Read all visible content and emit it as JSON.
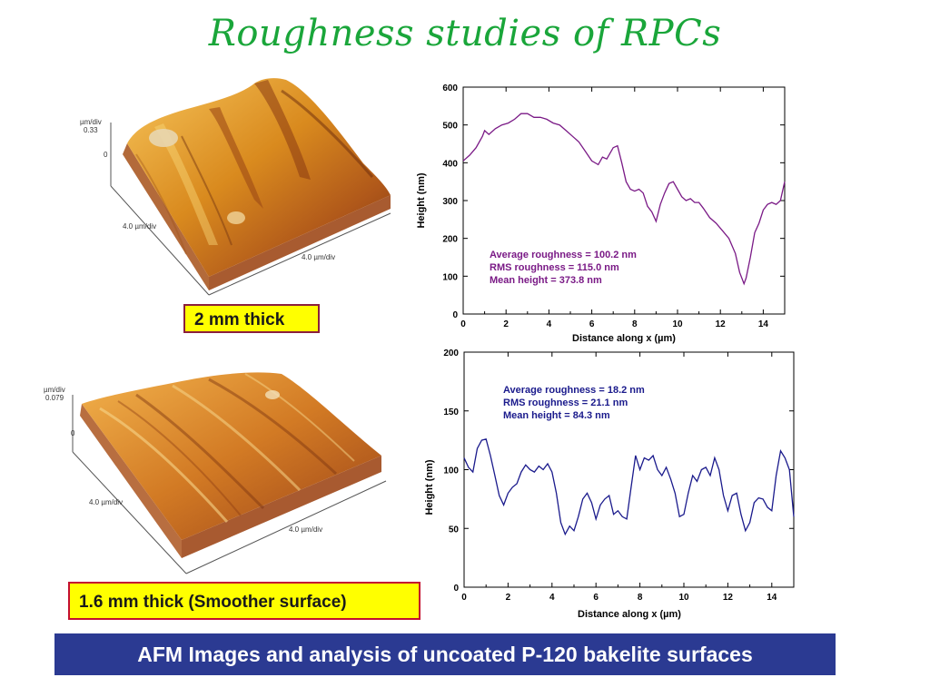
{
  "page": {
    "title": "Roughness studies of RPCs",
    "footer": "AFM Images and analysis of uncoated P-120 bakelite surfaces"
  },
  "afm_images": [
    {
      "label": "2 mm thick",
      "z_unit": "µm/div",
      "z_value": "0.33",
      "z_zero": "0",
      "x_scale": "4.0 µm/div",
      "y_scale": "4.0 µm/div"
    },
    {
      "label": "1.6 mm thick (Smoother surface)",
      "z_unit": "µm/div",
      "z_value": "0.079",
      "z_zero": "0",
      "x_scale": "4.0 µm/div",
      "y_scale": "4.0 µm/div"
    }
  ],
  "colors": {
    "title": "#1aa63a",
    "footer_bg": "#2b3a92",
    "label_bg": "#ffff00",
    "series_top": "#7a1a86",
    "series_bottom": "#1a1a8c"
  },
  "chart_data": [
    {
      "type": "line",
      "xlabel": "Distance along x (µm)",
      "ylabel": "Height (nm)",
      "xlim": [
        0,
        15
      ],
      "ylim": [
        0,
        600
      ],
      "xticks": [
        0,
        2,
        4,
        6,
        8,
        10,
        12,
        14
      ],
      "yticks": [
        0,
        100,
        200,
        300,
        400,
        500,
        600
      ],
      "annotations": [
        "Average roughness = 100.2 nm",
        "RMS roughness = 115.0 nm",
        "Mean height = 373.8 nm"
      ],
      "color": "#7a1a86",
      "x": [
        0,
        0.3,
        0.6,
        0.9,
        1.0,
        1.2,
        1.5,
        1.8,
        2.1,
        2.4,
        2.7,
        3.0,
        3.3,
        3.6,
        3.9,
        4.2,
        4.5,
        4.8,
        5.1,
        5.4,
        5.7,
        6.0,
        6.3,
        6.5,
        6.7,
        7.0,
        7.2,
        7.4,
        7.6,
        7.8,
        8.0,
        8.2,
        8.4,
        8.6,
        8.8,
        9.0,
        9.2,
        9.4,
        9.6,
        9.8,
        10.0,
        10.2,
        10.4,
        10.6,
        10.8,
        11.0,
        11.2,
        11.5,
        11.8,
        12.1,
        12.4,
        12.7,
        12.9,
        13.0,
        13.1,
        13.2,
        13.4,
        13.6,
        13.8,
        14.0,
        14.2,
        14.4,
        14.6,
        14.8,
        15.0
      ],
      "y": [
        405,
        420,
        440,
        470,
        485,
        475,
        490,
        500,
        505,
        515,
        530,
        530,
        520,
        520,
        515,
        505,
        500,
        485,
        470,
        455,
        430,
        405,
        395,
        415,
        410,
        440,
        445,
        400,
        350,
        330,
        325,
        330,
        320,
        285,
        270,
        245,
        290,
        320,
        345,
        350,
        330,
        310,
        300,
        305,
        295,
        295,
        280,
        255,
        240,
        220,
        200,
        160,
        110,
        95,
        80,
        95,
        150,
        215,
        240,
        275,
        290,
        295,
        290,
        300,
        350
      ]
    },
    {
      "type": "line",
      "xlabel": "Distance along x (µm)",
      "ylabel": "Height (nm)",
      "xlim": [
        0,
        15
      ],
      "ylim": [
        0,
        200
      ],
      "xticks": [
        0,
        2,
        4,
        6,
        8,
        10,
        12,
        14
      ],
      "yticks": [
        0,
        50,
        100,
        150,
        200
      ],
      "annotations": [
        "Average roughness = 18.2 nm",
        "RMS roughness = 21.1 nm",
        "Mean height = 84.3 nm"
      ],
      "color": "#1a1a8c",
      "x": [
        0,
        0.2,
        0.4,
        0.6,
        0.8,
        1.0,
        1.2,
        1.4,
        1.6,
        1.8,
        2.0,
        2.2,
        2.4,
        2.6,
        2.8,
        3.0,
        3.2,
        3.4,
        3.6,
        3.8,
        4.0,
        4.2,
        4.4,
        4.6,
        4.8,
        5.0,
        5.2,
        5.4,
        5.6,
        5.8,
        6.0,
        6.2,
        6.4,
        6.6,
        6.8,
        7.0,
        7.2,
        7.4,
        7.6,
        7.8,
        8.0,
        8.2,
        8.4,
        8.6,
        8.8,
        9.0,
        9.2,
        9.4,
        9.6,
        9.8,
        10.0,
        10.2,
        10.4,
        10.6,
        10.8,
        11.0,
        11.2,
        11.4,
        11.6,
        11.8,
        12.0,
        12.2,
        12.4,
        12.6,
        12.8,
        13.0,
        13.2,
        13.4,
        13.6,
        13.8,
        14.0,
        14.2,
        14.4,
        14.6,
        14.8,
        15.0
      ],
      "y": [
        110,
        102,
        98,
        118,
        125,
        126,
        112,
        95,
        78,
        70,
        80,
        85,
        88,
        98,
        104,
        100,
        98,
        103,
        100,
        105,
        98,
        80,
        55,
        45,
        52,
        48,
        60,
        75,
        80,
        72,
        58,
        70,
        75,
        78,
        62,
        65,
        60,
        58,
        85,
        112,
        100,
        110,
        108,
        112,
        100,
        95,
        102,
        92,
        80,
        60,
        62,
        80,
        95,
        90,
        100,
        102,
        95,
        110,
        100,
        78,
        65,
        78,
        80,
        62,
        48,
        55,
        72,
        76,
        75,
        68,
        65,
        95,
        116,
        110,
        100,
        60
      ]
    }
  ]
}
